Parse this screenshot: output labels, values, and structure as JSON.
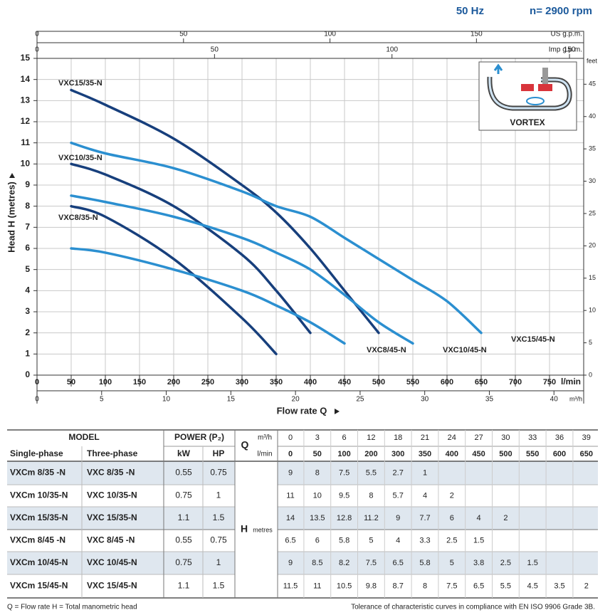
{
  "chart_data": {
    "type": "line",
    "header": [
      "50 Hz",
      "n= 2900 rpm"
    ],
    "ylabel": "Head H  (metres)",
    "xlabel": "Flow rate Q",
    "xunit": "l/min",
    "xlim": [
      0,
      800
    ],
    "xticks": [
      0,
      50,
      100,
      150,
      200,
      250,
      300,
      350,
      400,
      450,
      500,
      550,
      600,
      650,
      700,
      750
    ],
    "ylim": [
      0,
      15
    ],
    "yticks": [
      0,
      1,
      2,
      3,
      4,
      5,
      6,
      7,
      8,
      9,
      10,
      11,
      12,
      13,
      14,
      15
    ],
    "y2label": "feet",
    "y2lim": [
      0,
      49
    ],
    "y2ticks": [
      0,
      5,
      10,
      15,
      20,
      25,
      30,
      35,
      40,
      45
    ],
    "top_axes": [
      {
        "label": "US g.p.m.",
        "xlim": [
          0,
          186.6
        ],
        "xticks": [
          0,
          50,
          100,
          150
        ]
      },
      {
        "label": "Imp g.p.m.",
        "xlim": [
          0,
          154
        ],
        "xticks": [
          0,
          50,
          100,
          150
        ]
      }
    ],
    "bottom_axis2": {
      "label": "m³/h",
      "xlim": [
        0,
        42.3
      ],
      "xticks": [
        0,
        5,
        10,
        15,
        20,
        25,
        30,
        35,
        40
      ]
    },
    "grid": true,
    "inset_label": "VORTEX",
    "series": [
      {
        "name": "VXC8/35-N",
        "color": "#173f7c",
        "x": [
          50,
          100,
          200,
          300,
          350
        ],
        "values": [
          8,
          7.5,
          5.5,
          2.7,
          1
        ]
      },
      {
        "name": "VXC10/35-N",
        "color": "#173f7c",
        "x": [
          50,
          100,
          200,
          300,
          350,
          400
        ],
        "values": [
          10,
          9.5,
          8,
          5.7,
          4,
          2
        ]
      },
      {
        "name": "VXC15/35-N",
        "color": "#173f7c",
        "x": [
          50,
          100,
          200,
          300,
          350,
          400,
          450,
          500
        ],
        "values": [
          13.5,
          12.8,
          11.2,
          9,
          7.7,
          6,
          4,
          2
        ]
      },
      {
        "name": "VXC8/45-N",
        "color": "#2b8fd0",
        "x": [
          50,
          100,
          200,
          300,
          350,
          400,
          450
        ],
        "values": [
          6,
          5.8,
          5,
          4,
          3.3,
          2.5,
          1.5
        ]
      },
      {
        "name": "VXC10/45-N",
        "color": "#2b8fd0",
        "x": [
          50,
          100,
          200,
          300,
          350,
          400,
          450,
          500,
          550
        ],
        "values": [
          8.5,
          8.2,
          7.5,
          6.5,
          5.8,
          5,
          3.8,
          2.5,
          1.5
        ]
      },
      {
        "name": "VXC15/45-N",
        "color": "#2b8fd0",
        "x": [
          50,
          100,
          200,
          300,
          350,
          400,
          450,
          500,
          550,
          600,
          650
        ],
        "values": [
          11,
          10.5,
          9.8,
          8.7,
          8,
          7.5,
          6.5,
          5.5,
          4.5,
          3.5,
          2
        ]
      }
    ]
  },
  "table": {
    "model": "MODEL",
    "power": "POWER (P₂)",
    "single_phase": "Single-phase",
    "three_phase": "Three-phase",
    "kw": "kW",
    "hp": "HP",
    "q": "Q",
    "m3h": "m³/h",
    "lmin": "l/min",
    "h": "H",
    "metres": "metres",
    "flows_m3h": [
      0,
      3,
      6,
      12,
      18,
      21,
      24,
      27,
      30,
      33,
      36,
      39
    ],
    "flows_lmin": [
      0,
      50,
      100,
      200,
      300,
      350,
      400,
      450,
      500,
      550,
      600,
      650
    ],
    "rows": [
      {
        "single": "VXCm 8/35  -N",
        "three": "VXC 8/35  -N",
        "kw": 0.55,
        "hp": 0.75,
        "heads": [
          9,
          8,
          7.5,
          5.5,
          2.7,
          1
        ]
      },
      {
        "single": "VXCm 10/35-N",
        "three": "VXC 10/35-N",
        "kw": 0.75,
        "hp": 1,
        "heads": [
          11,
          10,
          9.5,
          8,
          5.7,
          4,
          2
        ]
      },
      {
        "single": "VXCm 15/35-N",
        "three": "VXC 15/35-N",
        "kw": 1.1,
        "hp": 1.5,
        "heads": [
          14,
          13.5,
          12.8,
          11.2,
          9,
          7.7,
          6,
          4,
          2
        ]
      },
      {
        "single": "VXCm 8/45  -N",
        "three": "VXC 8/45  -N",
        "kw": 0.55,
        "hp": 0.75,
        "heads": [
          6.5,
          6,
          5.8,
          5,
          4,
          3.3,
          2.5,
          1.5
        ]
      },
      {
        "single": "VXCm 10/45-N",
        "three": "VXC 10/45-N",
        "kw": 0.75,
        "hp": 1,
        "heads": [
          9,
          8.5,
          8.2,
          7.5,
          6.5,
          5.8,
          5,
          3.8,
          2.5,
          1.5
        ]
      },
      {
        "single": "VXCm 15/45-N",
        "three": "VXC 15/45-N",
        "kw": 1.1,
        "hp": 1.5,
        "heads": [
          11.5,
          11,
          10.5,
          9.8,
          8.7,
          8,
          7.5,
          6.5,
          5.5,
          4.5,
          3.5,
          2
        ]
      }
    ]
  },
  "footer": {
    "left": "Q = Flow rate   H = Total manometric head",
    "right": "Tolerance of characteristic curves in compliance with EN ISO 9906 Grade 3B."
  }
}
